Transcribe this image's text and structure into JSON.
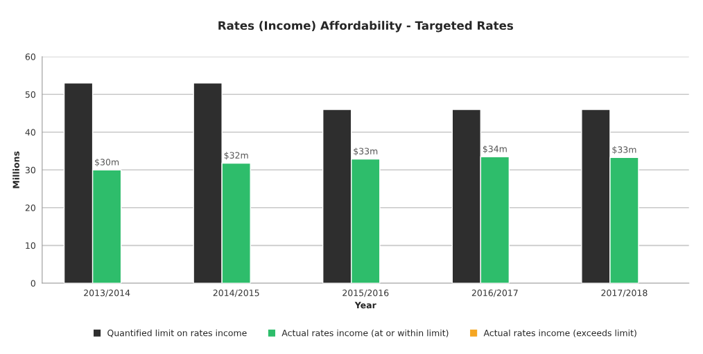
{
  "chart_data": {
    "type": "bar",
    "title": "Rates (Income) Affordability - Targeted Rates",
    "xlabel": "Year",
    "ylabel": "Millions",
    "categories": [
      "2013/2014",
      "2014/2015",
      "2015/2016",
      "2016/2017",
      "2017/2018"
    ],
    "series": [
      {
        "name": "Quantified limit on rates income",
        "color": "#2e2e2e",
        "values": [
          53,
          53,
          46,
          46,
          46
        ]
      },
      {
        "name": "Actual rates income (at or within limit)",
        "color": "#2ebd6b",
        "values": [
          30,
          31.8,
          32.9,
          33.5,
          33.3
        ],
        "value_labels": [
          "$30m",
          "$32m",
          "$33m",
          "$34m",
          "$33m"
        ]
      },
      {
        "name": "Actual rates income (exceeds limit)",
        "color": "#f5a623",
        "values": [
          null,
          null,
          null,
          null,
          null
        ]
      }
    ],
    "ylim": [
      0,
      60
    ],
    "yticks": [
      0,
      10,
      20,
      30,
      40,
      50,
      60
    ],
    "grid": "y",
    "legend": "bottom"
  }
}
